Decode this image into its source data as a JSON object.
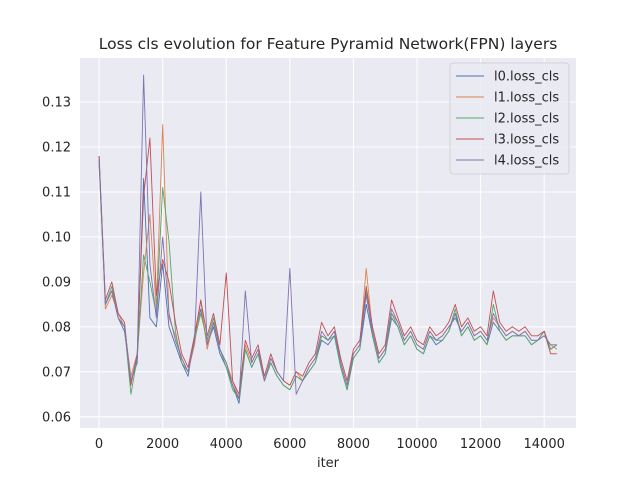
{
  "chart_data": {
    "type": "line",
    "title": "Loss cls evolution for Feature Pyramid Network(FPN) layers",
    "xlabel": "iter",
    "ylabel": "",
    "xlim": [
      -600,
      15000
    ],
    "ylim": [
      0.0575,
      0.1398
    ],
    "xticks": [
      0,
      2000,
      4000,
      6000,
      8000,
      10000,
      12000,
      14000
    ],
    "yticks": [
      0.06,
      0.07,
      0.08,
      0.09,
      0.1,
      0.11,
      0.12,
      0.13
    ],
    "ytick_labels": [
      "0.06",
      "0.07",
      "0.08",
      "0.09",
      "0.10",
      "0.11",
      "0.12",
      "0.13"
    ],
    "grid": true,
    "legend_position": "top-right",
    "series": [
      {
        "name": "l0.loss_cls",
        "color": "#4c72b0",
        "x": [
          0,
          200,
          400,
          600,
          800,
          1000,
          1200,
          1400,
          1600,
          1800,
          2000,
          2200,
          2400,
          2600,
          2800,
          3000,
          3200,
          3400,
          3600,
          3800,
          4000,
          4200,
          4400,
          4600,
          4800,
          5000,
          5200,
          5400,
          5600,
          5800,
          6000,
          6200,
          6400,
          6600,
          6800,
          7000,
          7200,
          7400,
          7600,
          7800,
          8000,
          8200,
          8400,
          8600,
          8800,
          9000,
          9200,
          9400,
          9600,
          9800,
          10000,
          10200,
          10400,
          10600,
          10800,
          11000,
          11200,
          11400,
          11600,
          11800,
          12000,
          12200,
          12400,
          12600,
          12800,
          13000,
          13200,
          13400,
          13600,
          13800,
          14000,
          14200,
          14400
        ],
        "y": [
          0.118,
          0.085,
          0.088,
          0.082,
          0.079,
          0.068,
          0.072,
          0.113,
          0.082,
          0.08,
          0.094,
          0.08,
          0.076,
          0.072,
          0.069,
          0.078,
          0.084,
          0.076,
          0.08,
          0.074,
          0.071,
          0.067,
          0.063,
          0.075,
          0.071,
          0.074,
          0.068,
          0.072,
          0.069,
          0.067,
          0.066,
          0.069,
          0.068,
          0.07,
          0.072,
          0.077,
          0.076,
          0.078,
          0.071,
          0.066,
          0.073,
          0.075,
          0.085,
          0.078,
          0.072,
          0.074,
          0.082,
          0.08,
          0.076,
          0.078,
          0.075,
          0.074,
          0.078,
          0.076,
          0.077,
          0.079,
          0.083,
          0.078,
          0.08,
          0.077,
          0.078,
          0.076,
          0.081,
          0.079,
          0.077,
          0.078,
          0.078,
          0.078,
          0.076,
          0.077,
          0.079,
          0.075,
          0.076
        ]
      },
      {
        "name": "l1.loss_cls",
        "color": "#dd8452",
        "x": [
          0,
          200,
          400,
          600,
          800,
          1000,
          1200,
          1400,
          1600,
          1800,
          2000,
          2200,
          2400,
          2600,
          2800,
          3000,
          3200,
          3400,
          3600,
          3800,
          4000,
          4200,
          4400,
          4600,
          4800,
          5000,
          5200,
          5400,
          5600,
          5800,
          6000,
          6200,
          6400,
          6600,
          6800,
          7000,
          7200,
          7400,
          7600,
          7800,
          8000,
          8200,
          8400,
          8600,
          8800,
          9000,
          9200,
          9400,
          9600,
          9800,
          10000,
          10200,
          10400,
          10600,
          10800,
          11000,
          11200,
          11400,
          11600,
          11800,
          12000,
          12200,
          12400,
          12600,
          12800,
          13000,
          13200,
          13400,
          13600,
          13800,
          14000,
          14200,
          14400
        ],
        "y": [
          0.117,
          0.084,
          0.087,
          0.083,
          0.08,
          0.069,
          0.074,
          0.092,
          0.105,
          0.084,
          0.125,
          0.082,
          0.078,
          0.073,
          0.07,
          0.076,
          0.086,
          0.075,
          0.081,
          0.075,
          0.072,
          0.068,
          0.064,
          0.076,
          0.072,
          0.075,
          0.068,
          0.073,
          0.07,
          0.068,
          0.067,
          0.07,
          0.068,
          0.071,
          0.073,
          0.078,
          0.077,
          0.079,
          0.072,
          0.067,
          0.074,
          0.076,
          0.093,
          0.079,
          0.073,
          0.075,
          0.083,
          0.081,
          0.077,
          0.079,
          0.076,
          0.075,
          0.079,
          0.077,
          0.078,
          0.08,
          0.082,
          0.079,
          0.081,
          0.078,
          0.079,
          0.077,
          0.082,
          0.08,
          0.078,
          0.079,
          0.078,
          0.079,
          0.077,
          0.077,
          0.078,
          0.076,
          0.075
        ]
      },
      {
        "name": "l2.loss_cls",
        "color": "#55a868",
        "x": [
          0,
          200,
          400,
          600,
          800,
          1000,
          1200,
          1400,
          1600,
          1800,
          2000,
          2200,
          2400,
          2600,
          2800,
          3000,
          3200,
          3400,
          3600,
          3800,
          4000,
          4200,
          4400,
          4600,
          4800,
          5000,
          5200,
          5400,
          5600,
          5800,
          6000,
          6200,
          6400,
          6600,
          6800,
          7000,
          7200,
          7400,
          7600,
          7800,
          8000,
          8200,
          8400,
          8600,
          8800,
          9000,
          9200,
          9400,
          9600,
          9800,
          10000,
          10200,
          10400,
          10600,
          10800,
          11000,
          11200,
          11400,
          11600,
          11800,
          12000,
          12200,
          12400,
          12600,
          12800,
          13000,
          13200,
          13400,
          13600,
          13800,
          14000,
          14200,
          14400
        ],
        "y": [
          0.116,
          0.085,
          0.089,
          0.082,
          0.08,
          0.065,
          0.073,
          0.096,
          0.09,
          0.083,
          0.111,
          0.099,
          0.079,
          0.072,
          0.07,
          0.077,
          0.083,
          0.077,
          0.082,
          0.075,
          0.071,
          0.066,
          0.064,
          0.075,
          0.071,
          0.074,
          0.068,
          0.072,
          0.069,
          0.067,
          0.066,
          0.069,
          0.068,
          0.07,
          0.072,
          0.078,
          0.077,
          0.078,
          0.071,
          0.066,
          0.073,
          0.075,
          0.088,
          0.078,
          0.072,
          0.074,
          0.083,
          0.08,
          0.076,
          0.078,
          0.075,
          0.074,
          0.078,
          0.077,
          0.077,
          0.079,
          0.084,
          0.078,
          0.08,
          0.077,
          0.078,
          0.076,
          0.085,
          0.079,
          0.077,
          0.078,
          0.078,
          0.078,
          0.076,
          0.077,
          0.079,
          0.075,
          0.076
        ]
      },
      {
        "name": "l3.loss_cls",
        "color": "#c44e52",
        "x": [
          0,
          200,
          400,
          600,
          800,
          1000,
          1200,
          1400,
          1600,
          1800,
          2000,
          2200,
          2400,
          2600,
          2800,
          3000,
          3200,
          3400,
          3600,
          3800,
          4000,
          4200,
          4400,
          4600,
          4800,
          5000,
          5200,
          5400,
          5600,
          5800,
          6000,
          6200,
          6400,
          6600,
          6800,
          7000,
          7200,
          7400,
          7600,
          7800,
          8000,
          8200,
          8400,
          8600,
          8800,
          9000,
          9200,
          9400,
          9600,
          9800,
          10000,
          10200,
          10400,
          10600,
          10800,
          11000,
          11200,
          11400,
          11600,
          11800,
          12000,
          12200,
          12400,
          12600,
          12800,
          13000,
          13200,
          13400,
          13600,
          13800,
          14000,
          14200,
          14400
        ],
        "y": [
          0.118,
          0.086,
          0.09,
          0.083,
          0.081,
          0.067,
          0.074,
          0.109,
          0.122,
          0.087,
          0.095,
          0.09,
          0.081,
          0.074,
          0.071,
          0.078,
          0.086,
          0.078,
          0.083,
          0.076,
          0.092,
          0.068,
          0.065,
          0.077,
          0.073,
          0.076,
          0.069,
          0.074,
          0.07,
          0.068,
          0.067,
          0.07,
          0.069,
          0.072,
          0.074,
          0.081,
          0.078,
          0.08,
          0.073,
          0.068,
          0.075,
          0.077,
          0.089,
          0.08,
          0.074,
          0.076,
          0.086,
          0.082,
          0.078,
          0.08,
          0.077,
          0.076,
          0.08,
          0.078,
          0.079,
          0.081,
          0.085,
          0.08,
          0.082,
          0.079,
          0.08,
          0.078,
          0.088,
          0.081,
          0.079,
          0.08,
          0.079,
          0.08,
          0.078,
          0.078,
          0.079,
          0.074,
          0.074
        ]
      },
      {
        "name": "l4.loss_cls",
        "color": "#8172b3",
        "x": [
          0,
          200,
          400,
          600,
          800,
          1000,
          1200,
          1400,
          1600,
          1800,
          2000,
          2200,
          2400,
          2600,
          2800,
          3000,
          3200,
          3400,
          3600,
          3800,
          4000,
          4200,
          4400,
          4600,
          4800,
          5000,
          5200,
          5400,
          5600,
          5800,
          6000,
          6200,
          6400,
          6600,
          6800,
          7000,
          7200,
          7400,
          7600,
          7800,
          8000,
          8200,
          8400,
          8600,
          8800,
          9000,
          9200,
          9400,
          9600,
          9800,
          10000,
          10200,
          10400,
          10600,
          10800,
          11000,
          11200,
          11400,
          11600,
          11800,
          12000,
          12200,
          12400,
          12600,
          12800,
          13000,
          13200,
          13400,
          13600,
          13800,
          14000,
          14200,
          14400
        ],
        "y": [
          0.117,
          0.085,
          0.088,
          0.082,
          0.08,
          0.068,
          0.073,
          0.136,
          0.094,
          0.082,
          0.1,
          0.083,
          0.077,
          0.073,
          0.07,
          0.077,
          0.11,
          0.076,
          0.081,
          0.075,
          0.072,
          0.067,
          0.064,
          0.088,
          0.072,
          0.075,
          0.068,
          0.073,
          0.07,
          0.068,
          0.093,
          0.065,
          0.068,
          0.071,
          0.073,
          0.079,
          0.077,
          0.079,
          0.072,
          0.067,
          0.074,
          0.076,
          0.087,
          0.079,
          0.073,
          0.075,
          0.084,
          0.081,
          0.077,
          0.079,
          0.076,
          0.075,
          0.079,
          0.077,
          0.078,
          0.08,
          0.082,
          0.079,
          0.081,
          0.078,
          0.079,
          0.077,
          0.083,
          0.08,
          0.078,
          0.079,
          0.078,
          0.079,
          0.077,
          0.077,
          0.078,
          0.076,
          0.076
        ]
      }
    ]
  }
}
